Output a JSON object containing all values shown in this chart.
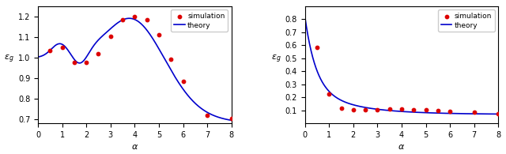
{
  "left": {
    "sim_x": [
      0.5,
      1.0,
      1.5,
      2.0,
      2.5,
      3.0,
      3.5,
      4.0,
      4.5,
      5.0,
      5.5,
      6.0,
      7.0,
      8.0
    ],
    "sim_y": [
      1.035,
      1.05,
      0.975,
      0.975,
      1.02,
      1.105,
      1.185,
      1.2,
      1.185,
      1.11,
      0.99,
      0.885,
      0.72,
      0.702
    ],
    "ylabel": "$\\epsilon_g$",
    "xlabel": "$\\alpha$",
    "xlim": [
      0,
      8
    ],
    "ylim": [
      0.68,
      1.25
    ],
    "yticks": [
      0.7,
      0.8,
      0.9,
      1.0,
      1.1,
      1.2
    ]
  },
  "right": {
    "sim_x": [
      0.5,
      1.0,
      1.5,
      2.0,
      2.5,
      3.0,
      3.5,
      4.0,
      4.5,
      5.0,
      5.5,
      6.0,
      7.0,
      8.0
    ],
    "sim_y": [
      0.585,
      0.222,
      0.115,
      0.102,
      0.101,
      0.103,
      0.108,
      0.108,
      0.103,
      0.105,
      0.097,
      0.092,
      0.085,
      0.075
    ],
    "ylabel": "$\\epsilon_g$",
    "xlabel": "$\\alpha$",
    "xlim": [
      0,
      8
    ],
    "ylim": [
      0.0,
      0.9
    ],
    "yticks": [
      0.1,
      0.2,
      0.3,
      0.4,
      0.5,
      0.6,
      0.7,
      0.8
    ]
  },
  "line_color": "#0000cc",
  "dot_color": "#dd0000",
  "legend_sim": "simulation",
  "legend_theory": "theory",
  "dot_size": 10,
  "linewidth": 1.2,
  "tick_labelsize": 7,
  "axis_labelsize": 8
}
